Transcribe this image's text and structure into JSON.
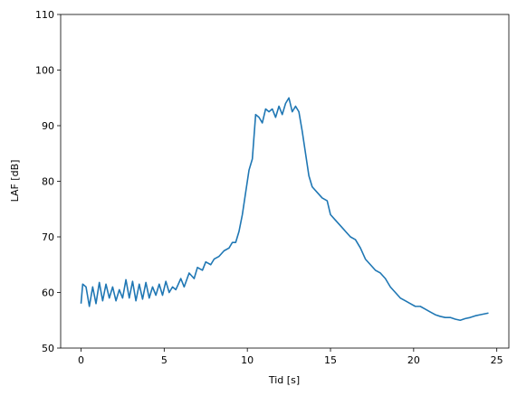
{
  "chart_data": {
    "type": "line",
    "xlabel": "Tid [s]",
    "ylabel": "LAF [dB]",
    "x": [
      0,
      0.1,
      0.3,
      0.5,
      0.7,
      0.9,
      1.1,
      1.3,
      1.5,
      1.7,
      1.9,
      2.1,
      2.3,
      2.5,
      2.7,
      2.9,
      3.1,
      3.3,
      3.5,
      3.7,
      3.9,
      4.1,
      4.3,
      4.5,
      4.7,
      4.9,
      5.1,
      5.3,
      5.5,
      5.7,
      6,
      6.2,
      6.5,
      6.8,
      7,
      7.3,
      7.5,
      7.8,
      8,
      8.3,
      8.6,
      8.9,
      9.1,
      9.3,
      9.5,
      9.7,
      9.9,
      10.1,
      10.3,
      10.4,
      10.5,
      10.7,
      10.9,
      11.1,
      11.3,
      11.5,
      11.7,
      11.9,
      12.1,
      12.3,
      12.5,
      12.7,
      12.9,
      13.1,
      13.3,
      13.5,
      13.7,
      13.9,
      14.2,
      14.5,
      14.8,
      15,
      15.3,
      15.6,
      15.9,
      16.2,
      16.5,
      16.8,
      17.1,
      17.4,
      17.7,
      18,
      18.3,
      18.6,
      18.9,
      19.2,
      19.5,
      19.8,
      20.1,
      20.4,
      20.7,
      21,
      21.3,
      21.6,
      21.9,
      22.2,
      22.5,
      22.8,
      23.1,
      23.4,
      23.7,
      24,
      24.5
    ],
    "series": [
      {
        "color": "#1f77b4",
        "values": [
          58,
          61.5,
          61,
          57.5,
          61,
          58,
          61.8,
          58.5,
          61.5,
          59,
          61,
          58.5,
          60.5,
          59,
          62.3,
          59,
          62,
          58.5,
          61.5,
          58.8,
          61.8,
          59,
          61,
          59.5,
          61.5,
          59.5,
          62,
          60,
          61,
          60.5,
          62.5,
          61,
          63.5,
          62.5,
          64.5,
          64,
          65.5,
          65,
          66,
          66.5,
          67.5,
          68,
          69,
          69,
          71,
          74,
          78,
          82,
          84,
          88,
          92,
          91.5,
          90.5,
          93,
          92.5,
          93,
          91.5,
          93.5,
          92,
          94,
          95,
          92.5,
          93.5,
          92.5,
          89,
          85,
          81,
          79,
          78,
          77,
          76.5,
          74,
          73,
          72,
          71,
          70,
          69.5,
          68,
          66,
          65,
          64,
          63.5,
          62.5,
          61,
          60,
          59,
          58.5,
          58,
          57.5,
          57.5,
          57,
          56.5,
          56,
          55.7,
          55.5,
          55.5,
          55.2,
          55,
          55.3,
          55.5,
          55.8,
          56,
          56.3
        ]
      }
    ],
    "xlim": [
      -1.225,
      25.725
    ],
    "xticks": [
      0,
      5,
      10,
      15,
      20,
      25
    ],
    "ylim": [
      50,
      110
    ],
    "yticks": [
      50,
      60,
      70,
      80,
      90,
      100,
      110
    ],
    "grid": false
  }
}
